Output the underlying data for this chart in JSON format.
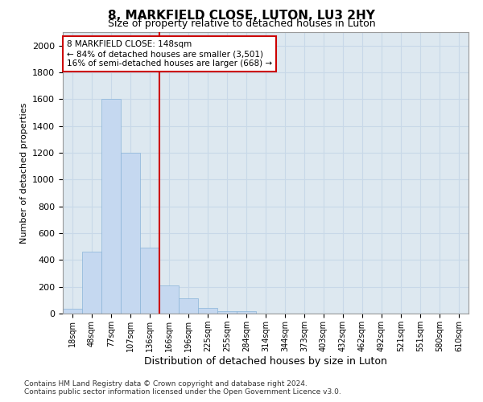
{
  "title": "8, MARKFIELD CLOSE, LUTON, LU3 2HY",
  "subtitle": "Size of property relative to detached houses in Luton",
  "xlabel": "Distribution of detached houses by size in Luton",
  "ylabel": "Number of detached properties",
  "footnote1": "Contains HM Land Registry data © Crown copyright and database right 2024.",
  "footnote2": "Contains public sector information licensed under the Open Government Licence v3.0.",
  "bar_color": "#c5d8f0",
  "bar_edge_color": "#8ab4d8",
  "grid_color": "#c8d8e8",
  "background_color": "#dde8f0",
  "vline_color": "#cc0000",
  "vline_x_index": 4,
  "annotation_text": "8 MARKFIELD CLOSE: 148sqm\n← 84% of detached houses are smaller (3,501)\n16% of semi-detached houses are larger (668) →",
  "annotation_box_color": "#ffffff",
  "annotation_box_edge": "#cc0000",
  "categories": [
    "18sqm",
    "48sqm",
    "77sqm",
    "107sqm",
    "136sqm",
    "166sqm",
    "196sqm",
    "225sqm",
    "255sqm",
    "284sqm",
    "314sqm",
    "344sqm",
    "373sqm",
    "403sqm",
    "432sqm",
    "462sqm",
    "492sqm",
    "521sqm",
    "551sqm",
    "580sqm",
    "610sqm"
  ],
  "values": [
    35,
    460,
    1600,
    1200,
    490,
    210,
    115,
    45,
    20,
    20,
    0,
    0,
    0,
    0,
    0,
    0,
    0,
    0,
    0,
    0,
    0
  ],
  "ylim": [
    0,
    2100
  ],
  "yticks": [
    0,
    200,
    400,
    600,
    800,
    1000,
    1200,
    1400,
    1600,
    1800,
    2000
  ],
  "title_fontsize": 11,
  "subtitle_fontsize": 9,
  "ylabel_fontsize": 8,
  "xlabel_fontsize": 9,
  "footnote_fontsize": 6.5
}
